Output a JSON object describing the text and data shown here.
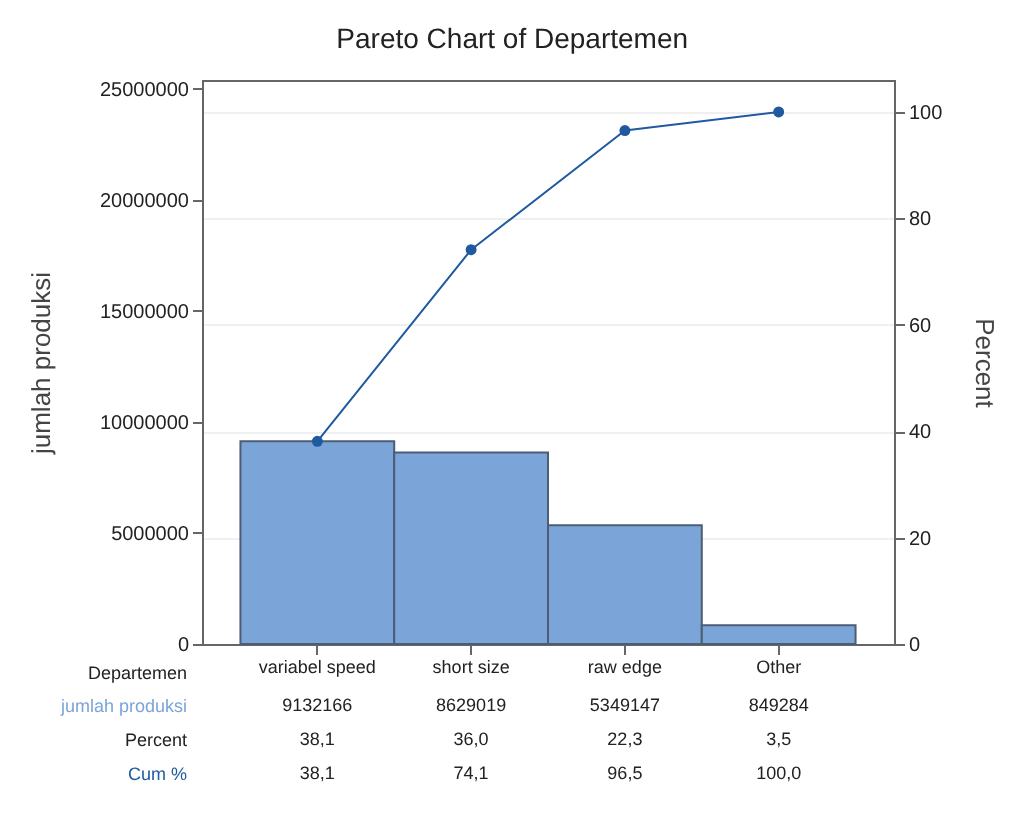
{
  "chart_data": {
    "type": "bar",
    "title": "Pareto Chart of Departemen",
    "xlabel": "Departemen",
    "ylabel": "jumlah produksi",
    "y2label": "Percent",
    "categories": [
      "variabel speed",
      "short size",
      "raw edge",
      "Other"
    ],
    "series": [
      {
        "name": "jumlah produksi",
        "color": "#7ba4d9",
        "values": [
          9132166,
          8629019,
          5349147,
          849284
        ],
        "value_labels": [
          "9132166",
          "8629019",
          "5349147",
          "849284"
        ]
      },
      {
        "name": "Cum %",
        "type": "line",
        "axis": "y2",
        "color": "#1f5aa0",
        "values": [
          38.1,
          74.1,
          96.5,
          100.0
        ],
        "value_labels": [
          "38,1",
          "74,1",
          "96,5",
          "100,0"
        ]
      }
    ],
    "annotations": [
      "Percent",
      "38,1",
      "36,0",
      "22,3",
      "3,5"
    ],
    "ylim": [
      0,
      25400000
    ],
    "yticks": [
      0,
      5000000,
      10000000,
      15000000,
      20000000,
      25000000
    ],
    "y2lim": [
      0,
      106
    ],
    "y2ticks": [
      0,
      20,
      40,
      60,
      80,
      100
    ],
    "grid": true,
    "marker": "circle",
    "line_style": "solid"
  }
}
